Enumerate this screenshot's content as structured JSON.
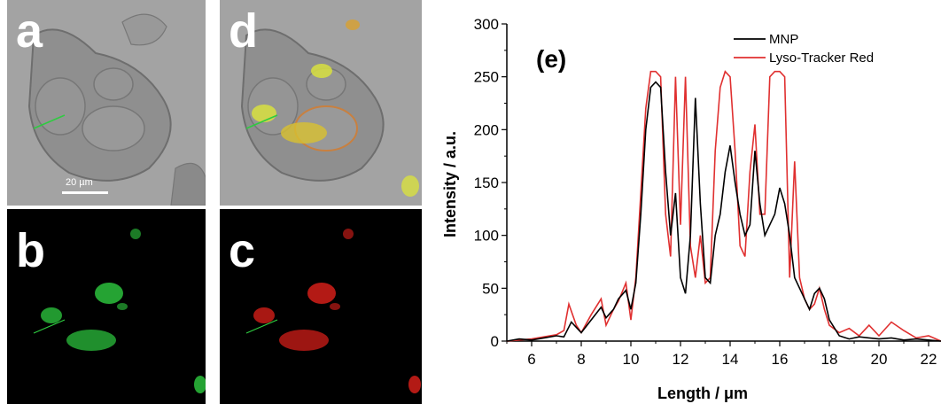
{
  "panels": {
    "a": {
      "label": "a",
      "scalebar": "20 µm"
    },
    "b": {
      "label": "b"
    },
    "c": {
      "label": "c"
    },
    "d": {
      "label": "d"
    }
  },
  "colors": {
    "mnp": "#000000",
    "lyso": "#e03030",
    "green_signal": "#2ecc40",
    "red_signal": "#e0201a",
    "yellow_signal": "#d8e040"
  },
  "chart_data": {
    "type": "line",
    "panel_label": "(e)",
    "xlabel": "Length / μm",
    "ylabel": "Intensity / a.u.",
    "xlim": [
      5,
      22.5
    ],
    "ylim": [
      0,
      300
    ],
    "xticks": [
      6,
      8,
      10,
      12,
      14,
      16,
      18,
      20,
      22
    ],
    "yticks": [
      0,
      50,
      100,
      150,
      200,
      250,
      300
    ],
    "legend_position": "top-right",
    "series": [
      {
        "name": "MNP",
        "color": "#000000",
        "x": [
          5.0,
          5.5,
          6.0,
          6.5,
          7.0,
          7.3,
          7.6,
          8.0,
          8.4,
          8.8,
          9.0,
          9.3,
          9.5,
          9.8,
          10.0,
          10.2,
          10.4,
          10.6,
          10.8,
          11.0,
          11.2,
          11.4,
          11.6,
          11.8,
          12.0,
          12.2,
          12.4,
          12.6,
          12.8,
          13.0,
          13.2,
          13.4,
          13.6,
          13.8,
          14.0,
          14.2,
          14.4,
          14.6,
          14.8,
          15.0,
          15.2,
          15.4,
          15.6,
          15.8,
          16.0,
          16.2,
          16.4,
          16.6,
          16.8,
          17.0,
          17.2,
          17.4,
          17.6,
          17.8,
          18.0,
          18.4,
          18.8,
          19.2,
          19.6,
          20.0,
          20.5,
          21.0,
          21.5,
          22.0,
          22.5
        ],
        "y": [
          0,
          2,
          1,
          3,
          5,
          4,
          18,
          8,
          20,
          32,
          22,
          30,
          40,
          48,
          30,
          55,
          120,
          200,
          240,
          245,
          240,
          160,
          100,
          140,
          60,
          45,
          100,
          230,
          130,
          60,
          55,
          100,
          120,
          160,
          185,
          150,
          120,
          100,
          110,
          180,
          130,
          100,
          110,
          120,
          145,
          130,
          100,
          60,
          50,
          40,
          30,
          45,
          50,
          40,
          20,
          5,
          2,
          4,
          3,
          2,
          3,
          1,
          2,
          1,
          0
        ]
      },
      {
        "name": "Lyso-Tracker Red",
        "color": "#e03030",
        "x": [
          5.0,
          5.5,
          6.0,
          6.5,
          7.0,
          7.3,
          7.5,
          7.8,
          8.0,
          8.4,
          8.8,
          9.0,
          9.3,
          9.5,
          9.8,
          10.0,
          10.2,
          10.4,
          10.6,
          10.8,
          11.0,
          11.2,
          11.4,
          11.6,
          11.8,
          12.0,
          12.2,
          12.4,
          12.6,
          12.8,
          13.0,
          13.2,
          13.4,
          13.6,
          13.8,
          14.0,
          14.2,
          14.4,
          14.6,
          14.8,
          15.0,
          15.2,
          15.4,
          15.6,
          15.8,
          16.0,
          16.2,
          16.4,
          16.6,
          16.8,
          17.0,
          17.2,
          17.4,
          17.6,
          17.8,
          18.0,
          18.4,
          18.8,
          19.2,
          19.6,
          20.0,
          20.5,
          21.0,
          21.5,
          22.0,
          22.5
        ],
        "y": [
          0,
          1,
          2,
          4,
          6,
          10,
          35,
          15,
          8,
          25,
          40,
          15,
          30,
          38,
          55,
          20,
          60,
          140,
          220,
          255,
          255,
          250,
          120,
          80,
          250,
          110,
          250,
          90,
          60,
          100,
          55,
          60,
          180,
          240,
          255,
          250,
          180,
          90,
          80,
          160,
          205,
          120,
          120,
          250,
          255,
          255,
          250,
          60,
          170,
          60,
          40,
          30,
          35,
          50,
          30,
          15,
          8,
          12,
          5,
          15,
          5,
          18,
          10,
          3,
          5,
          0
        ]
      }
    ]
  }
}
